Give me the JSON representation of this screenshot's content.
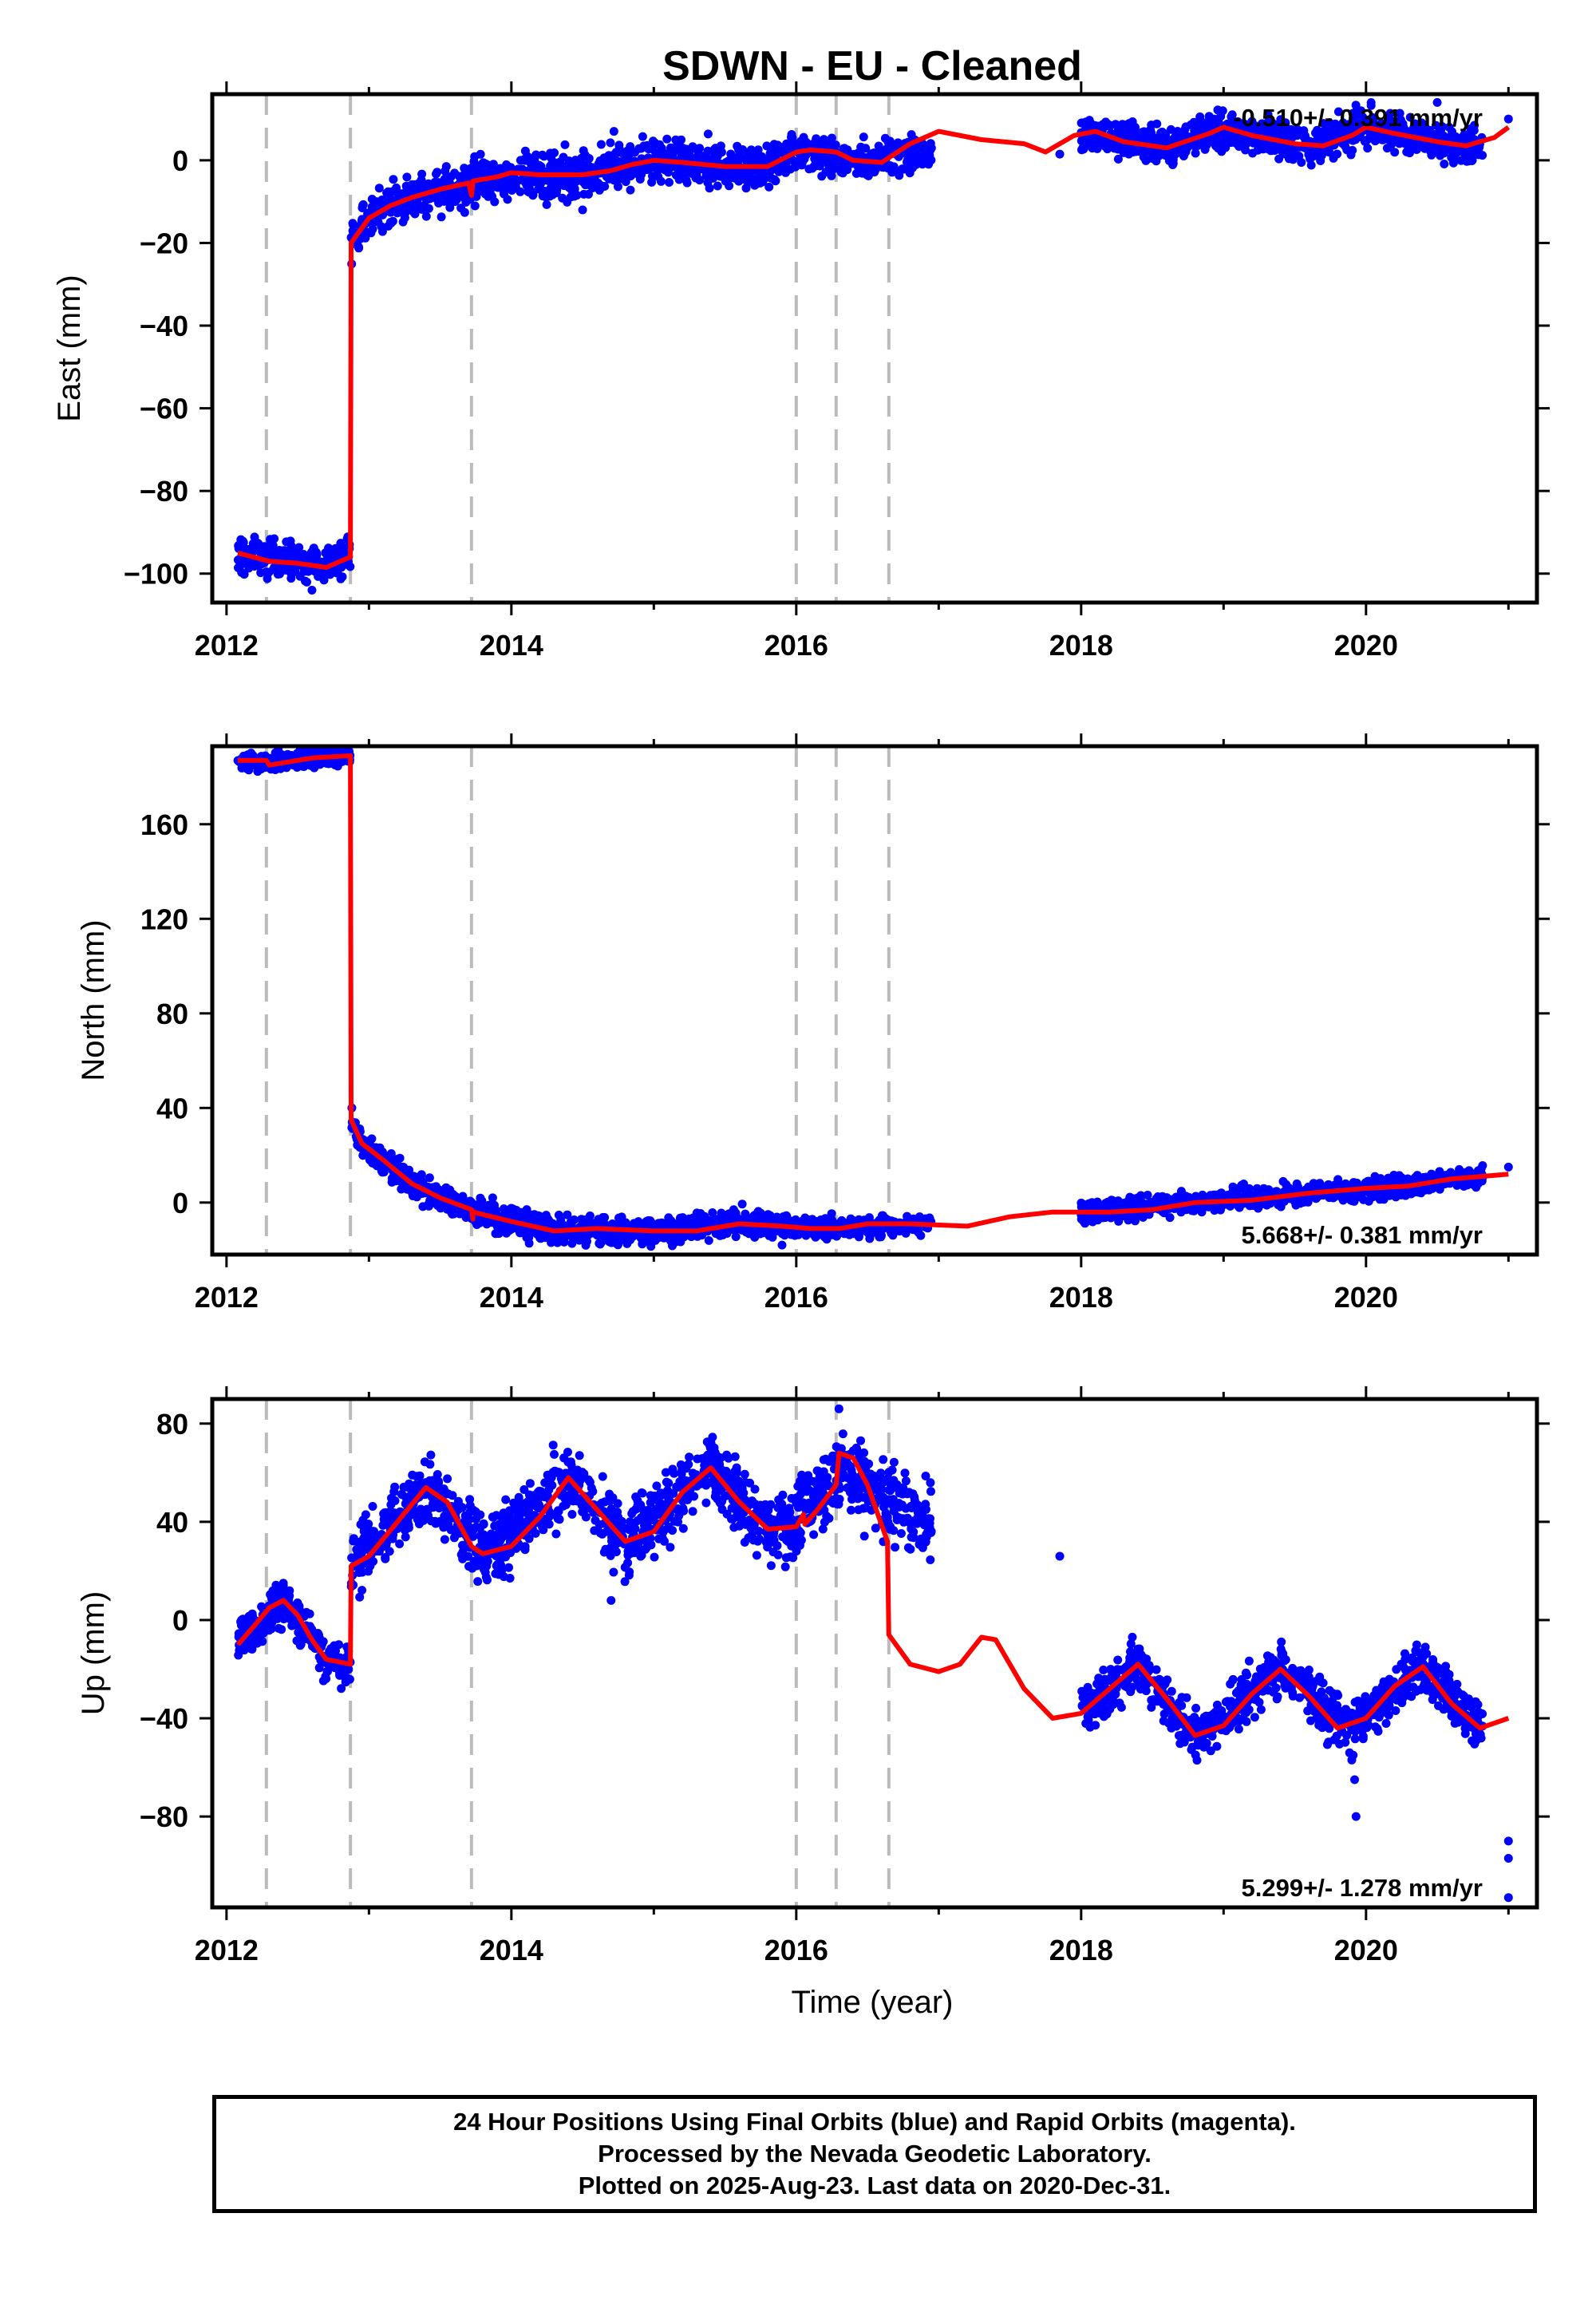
{
  "chart_data": {
    "type": "scatter",
    "title": "SDWN  - EU - Cleaned",
    "xlabel": "Time (year)",
    "x_ticks": [
      2012,
      2014,
      2016,
      2018,
      2020
    ],
    "x_range": [
      2011.9,
      2021.2
    ],
    "offset_epochs": [
      2012.28,
      2012.87,
      2013.72,
      2016.0,
      2016.28,
      2016.65
    ],
    "series_colors": {
      "data": "#0000ff",
      "model": "#ff0000",
      "offsets": "#bbbbbb"
    },
    "panels": [
      {
        "id": "east",
        "ylabel": "East (mm)",
        "ylim": [
          -107,
          16
        ],
        "y_ticks": [
          0,
          -20,
          -40,
          -60,
          -80,
          -100
        ],
        "rate": "-0.510+/- 0.391 mm/yr",
        "rate_position": "top-right",
        "model": [
          [
            2012.08,
            -95
          ],
          [
            2012.3,
            -97
          ],
          [
            2012.5,
            -97.5
          ],
          [
            2012.7,
            -98.5
          ],
          [
            2012.8,
            -97
          ],
          [
            2012.87,
            -96
          ],
          [
            2012.875,
            -20
          ],
          [
            2013.0,
            -14
          ],
          [
            2013.15,
            -11
          ],
          [
            2013.3,
            -9
          ],
          [
            2013.5,
            -7
          ],
          [
            2013.7,
            -5.5
          ],
          [
            2013.72,
            -8.5
          ],
          [
            2013.73,
            -5
          ],
          [
            2013.9,
            -4
          ],
          [
            2014.0,
            -3
          ],
          [
            2014.2,
            -3.5
          ],
          [
            2014.5,
            -3.5
          ],
          [
            2014.7,
            -2.5
          ],
          [
            2014.85,
            -1
          ],
          [
            2015.0,
            0
          ],
          [
            2015.2,
            -0.5
          ],
          [
            2015.5,
            -1.5
          ],
          [
            2015.8,
            -1.5
          ],
          [
            2016.0,
            2
          ],
          [
            2016.1,
            2.5
          ],
          [
            2016.28,
            2
          ],
          [
            2016.4,
            0
          ],
          [
            2016.6,
            -0.5
          ],
          [
            2016.8,
            4
          ],
          [
            2017.0,
            7
          ],
          [
            2017.3,
            5
          ],
          [
            2017.6,
            4
          ],
          [
            2017.75,
            2
          ],
          [
            2017.95,
            6
          ],
          [
            2018.1,
            7
          ],
          [
            2018.3,
            4.5
          ],
          [
            2018.6,
            3
          ],
          [
            2018.9,
            6.5
          ],
          [
            2019.0,
            8
          ],
          [
            2019.2,
            6
          ],
          [
            2019.5,
            4
          ],
          [
            2019.7,
            3.5
          ],
          [
            2019.9,
            6
          ],
          [
            2020.0,
            8
          ],
          [
            2020.2,
            6.5
          ],
          [
            2020.5,
            4.5
          ],
          [
            2020.7,
            3.5
          ],
          [
            2020.9,
            5.5
          ],
          [
            2021.0,
            8
          ]
        ],
        "data_segments": [
          {
            "x_start": 2012.08,
            "x_end": 2012.87,
            "base": [
              [
                2012.08,
                -95
              ],
              [
                2012.5,
                -97.5
              ],
              [
                2012.87,
                -96
              ]
            ],
            "scatter": 2.2
          },
          {
            "x_start": 2012.875,
            "x_end": 2013.72,
            "base": [
              [
                2012.875,
                -20
              ],
              [
                2013.0,
                -14
              ],
              [
                2013.3,
                -9
              ],
              [
                2013.72,
                -6
              ]
            ],
            "scatter": 2.5
          },
          {
            "x_start": 2013.72,
            "x_end": 2016.0,
            "base": [
              [
                2013.72,
                -5
              ],
              [
                2014.5,
                -3.5
              ],
              [
                2015.0,
                0
              ],
              [
                2015.8,
                -1.5
              ],
              [
                2016.0,
                2
              ]
            ],
            "scatter": 2.6
          },
          {
            "x_start": 2016.0,
            "x_end": 2016.95,
            "base": [
              [
                2016.0,
                2
              ],
              [
                2016.5,
                0
              ],
              [
                2016.95,
                2
              ]
            ],
            "scatter": 2.0
          },
          {
            "x_start": 2018.0,
            "x_end": 2020.82,
            "base": [
              [
                2018.0,
                7
              ],
              [
                2018.6,
                3
              ],
              [
                2019.0,
                8
              ],
              [
                2019.6,
                3.5
              ],
              [
                2020.0,
                8
              ],
              [
                2020.7,
                3.5
              ]
            ],
            "scatter": 2.2
          }
        ],
        "outliers": [
          [
            2014.72,
            7
          ],
          [
            2017.85,
            1.5
          ],
          [
            2020.5,
            14
          ],
          [
            2021.0,
            10
          ],
          [
            2014.5,
            -12
          ],
          [
            2012.6,
            -104
          ]
        ]
      },
      {
        "id": "north",
        "ylabel": "North (mm)",
        "ylim": [
          -22,
          193
        ],
        "y_ticks": [
          160,
          120,
          80,
          40,
          0
        ],
        "rate": "5.668+/- 0.381 mm/yr",
        "rate_position": "bottom-right",
        "model": [
          [
            2012.08,
            187
          ],
          [
            2012.28,
            187
          ],
          [
            2012.3,
            185
          ],
          [
            2012.6,
            188
          ],
          [
            2012.87,
            189
          ],
          [
            2012.875,
            35
          ],
          [
            2012.95,
            25
          ],
          [
            2013.1,
            18
          ],
          [
            2013.3,
            8
          ],
          [
            2013.5,
            2
          ],
          [
            2013.72,
            -3
          ],
          [
            2013.73,
            -7
          ],
          [
            2013.73,
            -4
          ],
          [
            2014.0,
            -8
          ],
          [
            2014.3,
            -12
          ],
          [
            2014.6,
            -11
          ],
          [
            2015.0,
            -12
          ],
          [
            2015.3,
            -12
          ],
          [
            2015.6,
            -9
          ],
          [
            2015.9,
            -10
          ],
          [
            2016.1,
            -11
          ],
          [
            2016.3,
            -11
          ],
          [
            2016.5,
            -9
          ],
          [
            2016.8,
            -9
          ],
          [
            2017.2,
            -10
          ],
          [
            2017.5,
            -6
          ],
          [
            2017.8,
            -4
          ],
          [
            2018.2,
            -4
          ],
          [
            2018.5,
            -3
          ],
          [
            2018.8,
            0
          ],
          [
            2019.2,
            1
          ],
          [
            2019.6,
            4
          ],
          [
            2020.0,
            6
          ],
          [
            2020.3,
            7
          ],
          [
            2020.6,
            10
          ],
          [
            2020.8,
            11
          ],
          [
            2021.0,
            12
          ]
        ],
        "data_segments": [
          {
            "x_start": 2012.08,
            "x_end": 2012.87,
            "base": [
              [
                2012.08,
                187
              ],
              [
                2012.3,
                186
              ],
              [
                2012.6,
                188
              ],
              [
                2012.87,
                189
              ]
            ],
            "scatter": 1.8
          },
          {
            "x_start": 2012.875,
            "x_end": 2013.72,
            "base": [
              [
                2012.875,
                33
              ],
              [
                2012.95,
                25
              ],
              [
                2013.1,
                18
              ],
              [
                2013.3,
                8
              ],
              [
                2013.5,
                2
              ],
              [
                2013.72,
                -3
              ]
            ],
            "scatter": 2.8
          },
          {
            "x_start": 2013.72,
            "x_end": 2016.28,
            "base": [
              [
                2013.72,
                -4
              ],
              [
                2014.3,
                -12
              ],
              [
                2015.0,
                -12
              ],
              [
                2015.6,
                -9
              ],
              [
                2016.28,
                -11
              ]
            ],
            "scatter": 2.8
          },
          {
            "x_start": 2016.28,
            "x_end": 2016.95,
            "base": [
              [
                2016.28,
                -11
              ],
              [
                2016.95,
                -9
              ]
            ],
            "scatter": 2.0
          },
          {
            "x_start": 2018.0,
            "x_end": 2020.82,
            "base": [
              [
                2018.0,
                -4
              ],
              [
                2018.8,
                0
              ],
              [
                2019.6,
                4
              ],
              [
                2020.3,
                7
              ],
              [
                2020.82,
                11
              ]
            ],
            "scatter": 2.2
          }
        ],
        "outliers": [
          [
            2021.0,
            15
          ],
          [
            2015.9,
            -18
          ],
          [
            2012.88,
            40
          ]
        ]
      },
      {
        "id": "up",
        "ylabel": "Up (mm)",
        "ylim": [
          -117,
          90
        ],
        "y_ticks": [
          80,
          40,
          0,
          -40,
          -80
        ],
        "rate": "5.299+/- 1.278 mm/yr",
        "rate_position": "bottom-right",
        "model": [
          [
            2012.08,
            -10
          ],
          [
            2012.2,
            -2
          ],
          [
            2012.3,
            5
          ],
          [
            2012.4,
            8
          ],
          [
            2012.5,
            2
          ],
          [
            2012.6,
            -8
          ],
          [
            2012.7,
            -16
          ],
          [
            2012.87,
            -18
          ],
          [
            2012.875,
            22
          ],
          [
            2013.0,
            26
          ],
          [
            2013.2,
            40
          ],
          [
            2013.4,
            54
          ],
          [
            2013.55,
            48
          ],
          [
            2013.72,
            30
          ],
          [
            2013.8,
            27
          ],
          [
            2014.0,
            30
          ],
          [
            2014.2,
            42
          ],
          [
            2014.4,
            58
          ],
          [
            2014.6,
            45
          ],
          [
            2014.8,
            32
          ],
          [
            2015.0,
            36
          ],
          [
            2015.2,
            52
          ],
          [
            2015.4,
            62
          ],
          [
            2015.6,
            48
          ],
          [
            2015.8,
            37
          ],
          [
            2016.0,
            38
          ],
          [
            2016.05,
            43
          ],
          [
            2016.06,
            39
          ],
          [
            2016.15,
            45
          ],
          [
            2016.28,
            55
          ],
          [
            2016.3,
            68
          ],
          [
            2016.4,
            66
          ],
          [
            2016.5,
            55
          ],
          [
            2016.64,
            32
          ],
          [
            2016.65,
            -6
          ],
          [
            2016.8,
            -18
          ],
          [
            2017.0,
            -21
          ],
          [
            2017.15,
            -18
          ],
          [
            2017.3,
            -7
          ],
          [
            2017.4,
            -8
          ],
          [
            2017.6,
            -28
          ],
          [
            2017.8,
            -40
          ],
          [
            2018.0,
            -38
          ],
          [
            2018.2,
            -28
          ],
          [
            2018.4,
            -18
          ],
          [
            2018.6,
            -32
          ],
          [
            2018.8,
            -47
          ],
          [
            2019.0,
            -43
          ],
          [
            2019.2,
            -30
          ],
          [
            2019.4,
            -20
          ],
          [
            2019.6,
            -31
          ],
          [
            2019.8,
            -44
          ],
          [
            2020.0,
            -40
          ],
          [
            2020.2,
            -27
          ],
          [
            2020.4,
            -19
          ],
          [
            2020.6,
            -34
          ],
          [
            2020.8,
            -44
          ],
          [
            2021.0,
            -40
          ]
        ],
        "data_segments": [
          {
            "x_start": 2012.08,
            "x_end": 2012.87,
            "base": [
              [
                2012.08,
                -10
              ],
              [
                2012.4,
                8
              ],
              [
                2012.7,
                -16
              ],
              [
                2012.87,
                -18
              ]
            ],
            "scatter": 4.5
          },
          {
            "x_start": 2012.875,
            "x_end": 2016.0,
            "base": [
              [
                2012.875,
                22
              ],
              [
                2013.4,
                54
              ],
              [
                2013.8,
                27
              ],
              [
                2014.4,
                58
              ],
              [
                2014.8,
                32
              ],
              [
                2015.4,
                62
              ],
              [
                2015.8,
                37
              ],
              [
                2016.0,
                38
              ]
            ],
            "scatter": 7.0
          },
          {
            "x_start": 2016.0,
            "x_end": 2016.95,
            "base": [
              [
                2016.0,
                40
              ],
              [
                2016.3,
                62
              ],
              [
                2016.6,
                50
              ],
              [
                2016.95,
                40
              ]
            ],
            "scatter": 8.0
          },
          {
            "x_start": 2018.0,
            "x_end": 2020.82,
            "base": [
              [
                2018.0,
                -38
              ],
              [
                2018.4,
                -18
              ],
              [
                2018.8,
                -47
              ],
              [
                2019.4,
                -20
              ],
              [
                2019.9,
                -44
              ],
              [
                2020.4,
                -19
              ],
              [
                2020.8,
                -44
              ]
            ],
            "scatter": 5.0
          }
        ],
        "outliers": [
          [
            2017.85,
            26
          ],
          [
            2016.3,
            86
          ],
          [
            2014.7,
            8
          ],
          [
            2019.9,
            -57
          ],
          [
            2019.92,
            -65
          ],
          [
            2019.93,
            -80
          ],
          [
            2021.0,
            -90
          ],
          [
            2021.0,
            -97
          ],
          [
            2021.0,
            -113
          ]
        ]
      }
    ]
  },
  "footer": {
    "line1": "24 Hour Positions Using Final Orbits (blue) and Rapid Orbits (magenta).",
    "line2": "Processed by the Nevada Geodetic Laboratory.",
    "line3": "Plotted on 2025-Aug-23. Last data on 2020-Dec-31."
  }
}
